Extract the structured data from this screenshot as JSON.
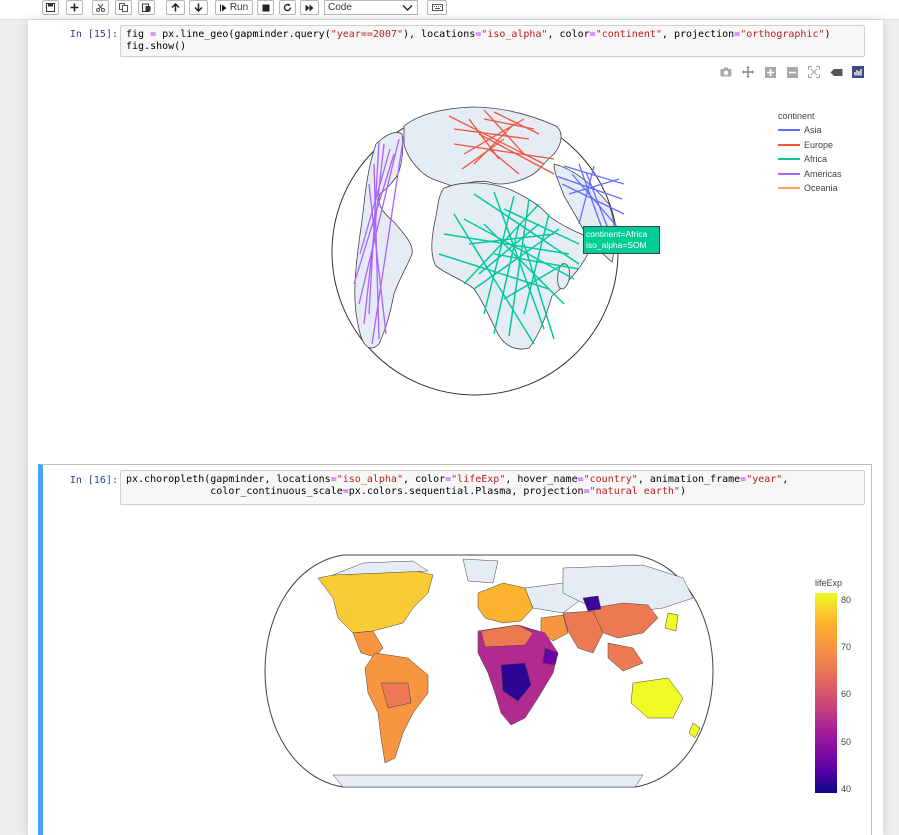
{
  "toolbar": {
    "run_label": "Run",
    "cell_type": "Code"
  },
  "cell15": {
    "prompt": "In [15]:",
    "code_line2": "fig.show()",
    "legend": {
      "title": "continent",
      "items": [
        {
          "label": "Asia",
          "color": "#636efa"
        },
        {
          "label": "Europe",
          "color": "#ef553b"
        },
        {
          "label": "Africa",
          "color": "#00cc96"
        },
        {
          "label": "Americas",
          "color": "#ab63fa"
        },
        {
          "label": "Oceania",
          "color": "#ffa15a"
        }
      ]
    },
    "hover": {
      "line1": "continent=Africa",
      "line2": "iso_alpha=SOM"
    }
  },
  "cell16": {
    "prompt": "In [16]:",
    "colorbar": {
      "title": "lifeExp",
      "ticks": [
        "80",
        "70",
        "60",
        "50",
        "40"
      ]
    }
  },
  "colors": {
    "prompt": "#303f9f",
    "string": "#ba2121",
    "selected_border": "#42a5f5",
    "land": "#e5ecf6"
  }
}
